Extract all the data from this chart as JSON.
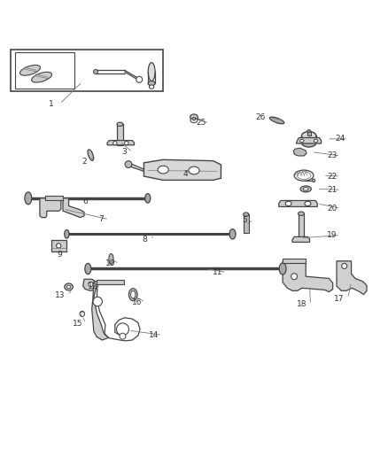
{
  "title": "",
  "background_color": "#ffffff",
  "line_color": "#444444",
  "light_gray": "#aaaaaa",
  "medium_gray": "#777777",
  "dark_gray": "#333333",
  "fig_width": 4.38,
  "fig_height": 5.33,
  "dpi": 100
}
